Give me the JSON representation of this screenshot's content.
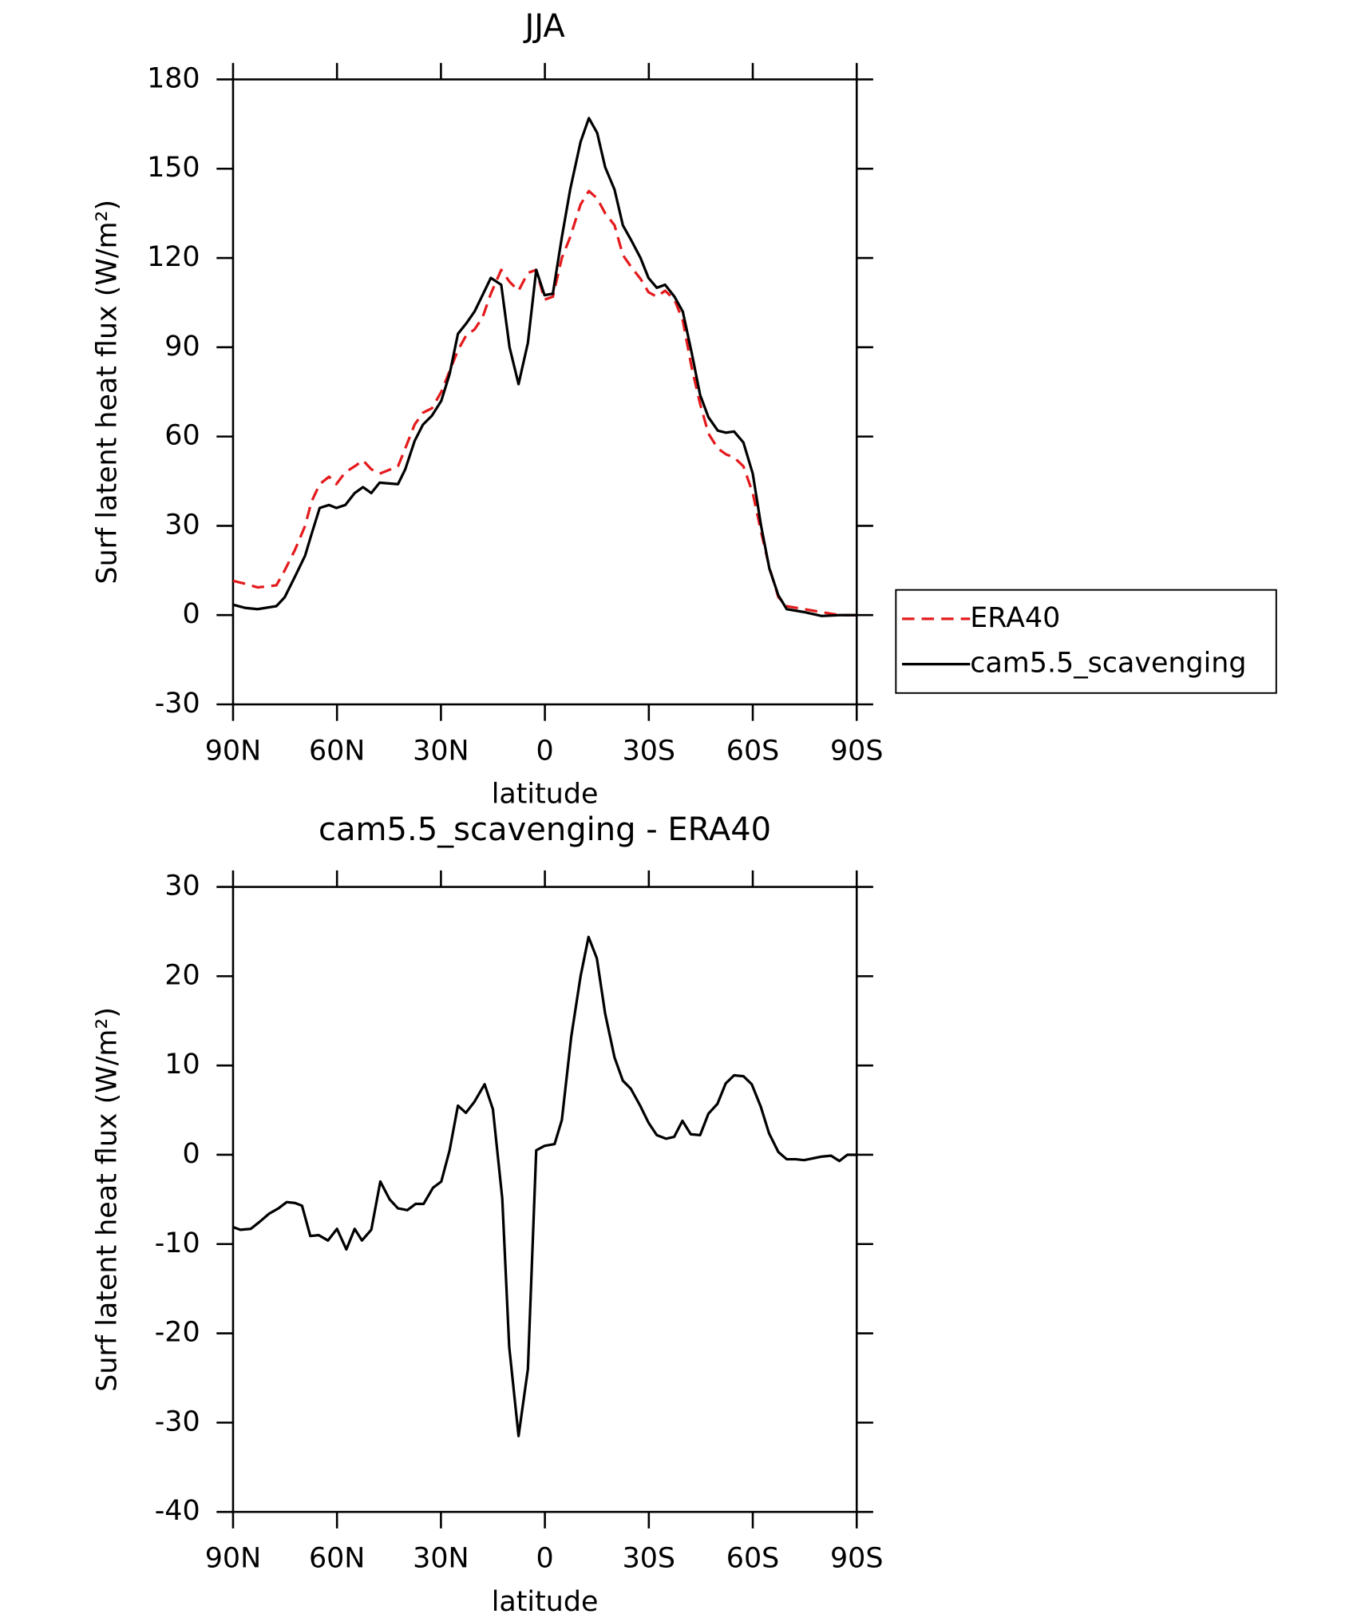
{
  "chart_data": [
    {
      "type": "line",
      "title": "JJA",
      "xlabel": "latitude",
      "ylabel": "Surf latent heat flux (W/m²)",
      "xlim": [
        90,
        -90
      ],
      "xticks": [
        {
          "value": 90,
          "label": "90N"
        },
        {
          "value": 60,
          "label": "60N"
        },
        {
          "value": 30,
          "label": "30N"
        },
        0,
        {
          "value": -30,
          "label": "30S"
        },
        {
          "value": -60,
          "label": "60S"
        },
        {
          "value": -90,
          "label": "90S"
        }
      ],
      "ylim": [
        -30,
        180
      ],
      "yticks": [
        -30,
        0,
        30,
        60,
        90,
        120,
        150,
        180
      ],
      "legend": "right",
      "x": [
        90,
        86.4,
        82.9,
        77.5,
        75.1,
        72.1,
        69.2,
        67.4,
        65,
        62.3,
        60.2,
        57.6,
        54.9,
        52.5,
        50.1,
        47.7,
        42.4,
        40.3,
        37.6,
        35.2,
        32.6,
        29.9,
        27.5,
        25.1,
        22.7,
        20.3,
        18,
        15.6,
        12.6,
        10.2,
        7.6,
        4.9,
        2.5,
        0.1,
        -2.3,
        -4.9,
        -7.3,
        -10.3,
        -12.7,
        -15.1,
        -17.4,
        -20.1,
        -22.5,
        -24.9,
        -27.6,
        -29.9,
        -32.3,
        -34.7,
        -37.4,
        -39.8,
        -42.4,
        -44.8,
        -47.2,
        -49.9,
        -52.3,
        -54.6,
        -57.3,
        -60,
        -62.4,
        -64.8,
        -67.4,
        -69.8,
        -74.9,
        -79.9,
        -85,
        -90
      ],
      "series": [
        {
          "name": "ERA40",
          "color": "#e41a1c",
          "dash": true,
          "values": [
            11.5,
            10.5,
            9.3,
            10,
            15,
            22,
            30,
            38,
            44,
            46.5,
            44,
            48,
            50,
            52,
            49,
            47.5,
            50,
            56,
            64,
            68,
            69.5,
            75,
            82,
            89,
            94,
            96,
            100,
            108,
            116,
            112,
            109,
            115,
            116,
            106,
            107,
            120,
            127,
            138,
            142.5,
            140,
            135,
            131,
            121,
            117,
            113,
            108.5,
            107,
            109,
            106,
            99,
            83,
            71,
            61,
            56,
            54,
            53,
            50,
            41,
            28,
            16,
            6,
            3,
            2,
            1,
            0,
            0
          ]
        },
        {
          "name": "cam5.5_scavenging",
          "color": "#000000",
          "dash": false,
          "values": [
            3.5,
            2.4,
            2,
            3,
            6,
            13,
            20,
            27,
            36,
            37,
            36,
            37,
            41,
            43,
            41,
            44.5,
            44,
            49,
            58.5,
            64,
            67,
            72,
            81,
            94.5,
            98,
            102,
            107.5,
            113.3,
            111,
            90,
            77.6,
            91.5,
            116,
            107.5,
            108,
            127,
            143,
            159,
            167,
            162,
            150.5,
            143,
            131,
            126,
            120,
            113.3,
            110,
            111,
            107,
            102,
            88,
            74,
            66.5,
            62,
            61.3,
            61.7,
            58,
            47.5,
            30,
            15.6,
            6.6,
            2,
            1,
            -0.3,
            0,
            0
          ]
        }
      ]
    },
    {
      "type": "line",
      "title": "cam5.5_scavenging - ERA40",
      "xlabel": "latitude",
      "ylabel": "Surf latent heat flux (W/m²)",
      "xlim": [
        90,
        -90
      ],
      "xticks": [
        {
          "value": 90,
          "label": "90N"
        },
        {
          "value": 60,
          "label": "60N"
        },
        {
          "value": 30,
          "label": "30N"
        },
        0,
        {
          "value": -30,
          "label": "30S"
        },
        {
          "value": -60,
          "label": "60S"
        },
        {
          "value": -90,
          "label": "90S"
        }
      ],
      "ylim": [
        -40,
        30
      ],
      "yticks": [
        -40,
        -30,
        -20,
        -10,
        0,
        10,
        20,
        30
      ],
      "x": [
        90,
        87.9,
        84.9,
        82.3,
        79.6,
        76.9,
        74.5,
        72.1,
        70.1,
        67.7,
        65.3,
        62.6,
        60,
        57.3,
        54.9,
        52.8,
        50.1,
        47.5,
        44.8,
        42.4,
        39.7,
        37.3,
        35,
        32.3,
        29.9,
        27.5,
        25.1,
        22.8,
        20.4,
        17.4,
        15,
        12.3,
        10.3,
        7.6,
        4.9,
        2.5,
        0.1,
        -2.8,
        -4.9,
        -7.6,
        -10.3,
        -12.6,
        -15,
        -17.4,
        -20.1,
        -22.5,
        -24.8,
        -27.5,
        -29.9,
        -32.3,
        -35,
        -37.3,
        -39.7,
        -42.1,
        -44.8,
        -47.2,
        -49.8,
        -52.2,
        -54.6,
        -57.3,
        -59.7,
        -62.3,
        -64.7,
        -67.4,
        -69.8,
        -72.4,
        -74.8,
        -79.9,
        -82.6,
        -85,
        -87.3,
        -90
      ],
      "series": [
        {
          "color": "#000000",
          "dash": false,
          "values": [
            -8.1,
            -8.4,
            -8.3,
            -7.5,
            -6.6,
            -6,
            -5.3,
            -5.4,
            -5.7,
            -9.1,
            -9,
            -9.6,
            -8.3,
            -10.6,
            -8.3,
            -9.6,
            -8.4,
            -3,
            -5,
            -6,
            -6.2,
            -5.5,
            -5.5,
            -3.7,
            -3,
            0.5,
            5.5,
            4.7,
            5.9,
            7.9,
            5.1,
            -4.9,
            -21.5,
            -31.5,
            -24,
            0.5,
            1,
            1.2,
            3.9,
            13.2,
            20,
            24.4,
            22,
            15.8,
            10.9,
            8.3,
            7.4,
            5.5,
            3.6,
            2.2,
            1.8,
            2,
            3.8,
            2.3,
            2.2,
            4.6,
            5.7,
            8,
            8.9,
            8.8,
            7.9,
            5.4,
            2.4,
            0.3,
            -0.5,
            -0.5,
            -0.6,
            -0.2,
            -0.1,
            -0.7,
            0,
            0
          ]
        }
      ]
    }
  ]
}
